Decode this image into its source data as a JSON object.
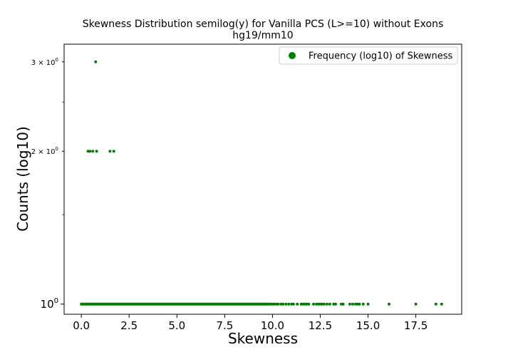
{
  "chart_data": {
    "type": "scatter",
    "title": "Skewness Distribution semilog(y) for Vanilla PCS (L>=10) without Exons",
    "subtitle": "hg19/mm10",
    "xlabel": "Skewness",
    "ylabel": "Counts (log10)",
    "xlim": [
      -0.9,
      19.9
    ],
    "ylim": [
      0.955,
      3.25
    ],
    "yscale": "log",
    "grid": false,
    "legend_position": "top-right",
    "x_ticks": [
      0,
      2.5,
      5,
      7.5,
      10,
      12.5,
      15,
      17.5
    ],
    "x_tick_labels": [
      "0.0",
      "2.5",
      "5.0",
      "7.5",
      "10.0",
      "12.5",
      "15.0",
      "17.5"
    ],
    "y_ticks": [
      1,
      2,
      3
    ],
    "y_tick_labels": [
      {
        "base": "10",
        "exp": "0",
        "prefix": ""
      },
      {
        "base": "10",
        "exp": "0",
        "prefix": "2 × "
      },
      {
        "base": "10",
        "exp": "0",
        "prefix": "3 × "
      }
    ],
    "series": [
      {
        "name": "Frequency (log10) of Skewness",
        "color": "#008000",
        "points": [
          {
            "x": 0.75,
            "y": 3
          },
          {
            "x": 0.35,
            "y": 2
          },
          {
            "x": 0.45,
            "y": 2
          },
          {
            "x": 0.6,
            "y": 2
          },
          {
            "x": 0.8,
            "y": 2
          },
          {
            "x": 1.5,
            "y": 2
          },
          {
            "x": 1.7,
            "y": 2
          }
        ],
        "dense_run": {
          "y": 1,
          "x_start": 0.0,
          "x_end": 9.8
        },
        "sparse_points_y1": [
          9.9,
          10.0,
          10.1,
          10.2,
          10.3,
          10.45,
          10.55,
          10.7,
          10.85,
          11.0,
          11.1,
          11.3,
          11.5,
          11.6,
          11.7,
          11.8,
          11.9,
          12.15,
          12.3,
          12.4,
          12.5,
          12.6,
          12.7,
          12.85,
          13.0,
          13.2,
          13.3,
          13.6,
          13.7,
          14.05,
          14.2,
          14.35,
          14.45,
          14.55,
          14.75,
          15.0,
          16.1,
          17.5,
          18.55,
          18.85
        ]
      }
    ]
  }
}
